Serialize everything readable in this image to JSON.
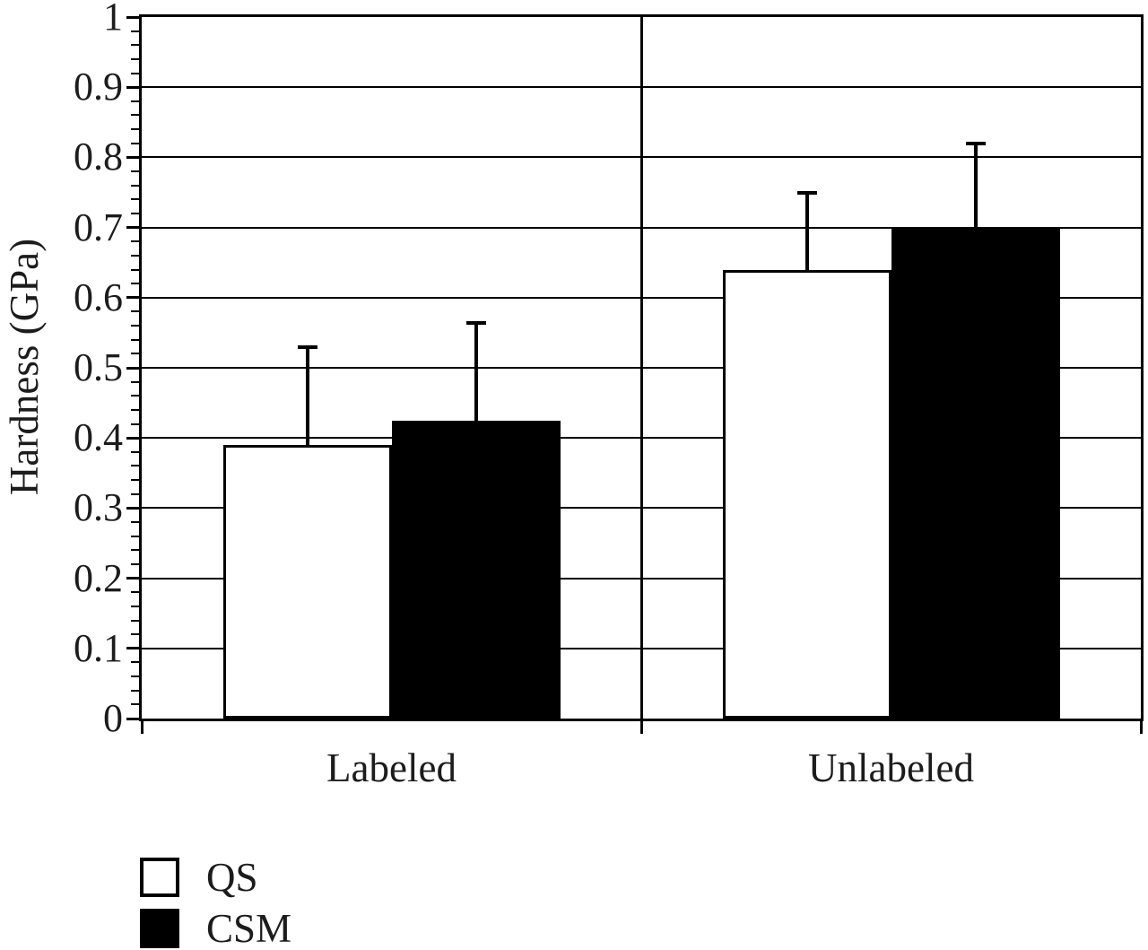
{
  "chart_data": {
    "type": "bar",
    "title": "",
    "ylabel": "Hardness (GPa)",
    "xlabel": "",
    "categories": [
      "Labeled",
      "Unlabeled"
    ],
    "series": [
      {
        "name": "QS",
        "fill": "#ffffff",
        "values": [
          0.39,
          0.64
        ],
        "errors_plus": [
          0.14,
          0.11
        ]
      },
      {
        "name": "CSM",
        "fill": "#000000",
        "values": [
          0.425,
          0.7
        ],
        "errors_plus": [
          0.14,
          0.12
        ]
      }
    ],
    "ylim": [
      0,
      1
    ],
    "ytick_step": 0.1,
    "yminor_step": 0.02,
    "ytick_labels": [
      "0",
      "0.1",
      "0.2",
      "0.3",
      "0.4",
      "0.5",
      "0.6",
      "0.7",
      "0.8",
      "0.9",
      "1"
    ],
    "grid": "horizontal-major",
    "panel_divider": true,
    "error_bars": "plus-only",
    "legend_position": "bottom-left",
    "colors": {
      "line": "#000000",
      "text": "#1c1c1c",
      "bar_qs_fill": "#ffffff",
      "bar_csm_fill": "#000000",
      "background": "#ffffff"
    }
  }
}
